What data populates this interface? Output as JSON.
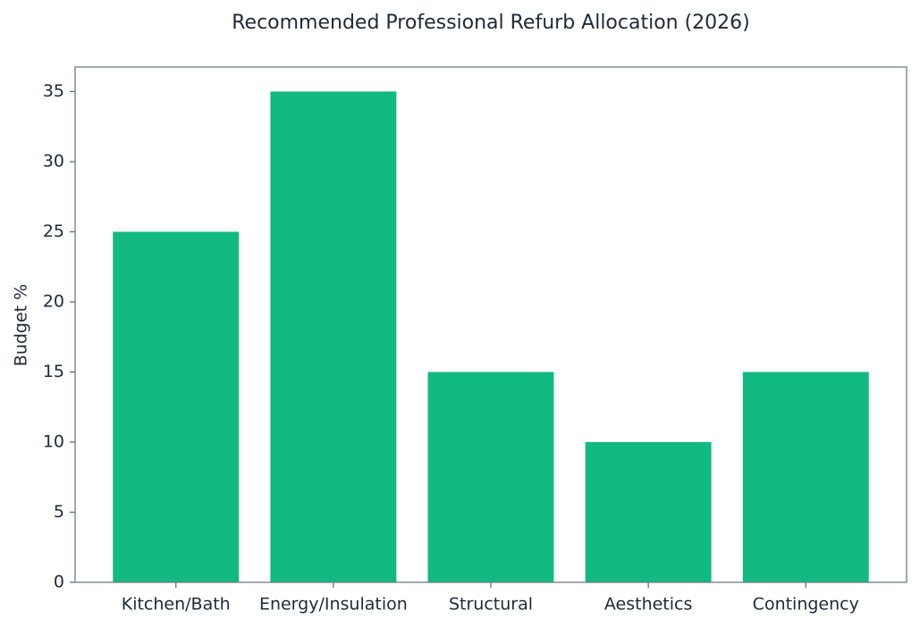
{
  "chart_data": {
    "type": "bar",
    "title": "Recommended Professional Refurb Allocation (2026)",
    "ylabel": "Budget %",
    "categories": [
      "Kitchen/Bath",
      "Energy/Insulation",
      "Structural",
      "Aesthetics",
      "Contingency"
    ],
    "values": [
      25,
      35,
      15,
      10,
      15
    ],
    "color": "#12b981",
    "ylim": [
      0,
      36.75
    ],
    "yticks": [
      0,
      5,
      10,
      15,
      20,
      25,
      30,
      35
    ],
    "grid": false
  }
}
